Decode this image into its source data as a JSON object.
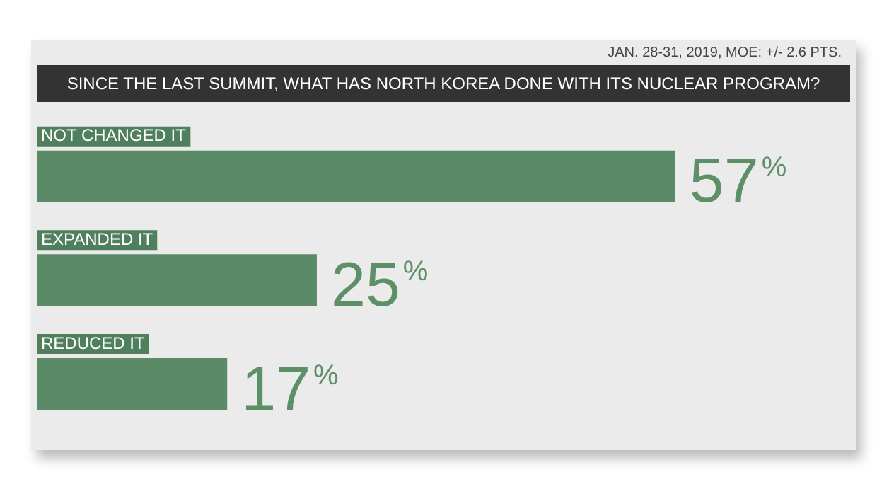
{
  "chart_data": {
    "type": "bar",
    "orientation": "horizontal",
    "title": "SINCE THE LAST SUMMIT, WHAT HAS NORTH KOREA DONE WITH ITS NUCLEAR PROGRAM?",
    "subtitle": "JAN. 28-31, 2019, MOE: +/- 2.6 PTS.",
    "categories": [
      "NOT CHANGED IT",
      "EXPANDED IT",
      "REDUCED IT"
    ],
    "values": [
      57,
      25,
      17
    ],
    "color": "#5a8a66",
    "value_labels": [
      "57%",
      "25%",
      "17%"
    ],
    "legend": false
  }
}
